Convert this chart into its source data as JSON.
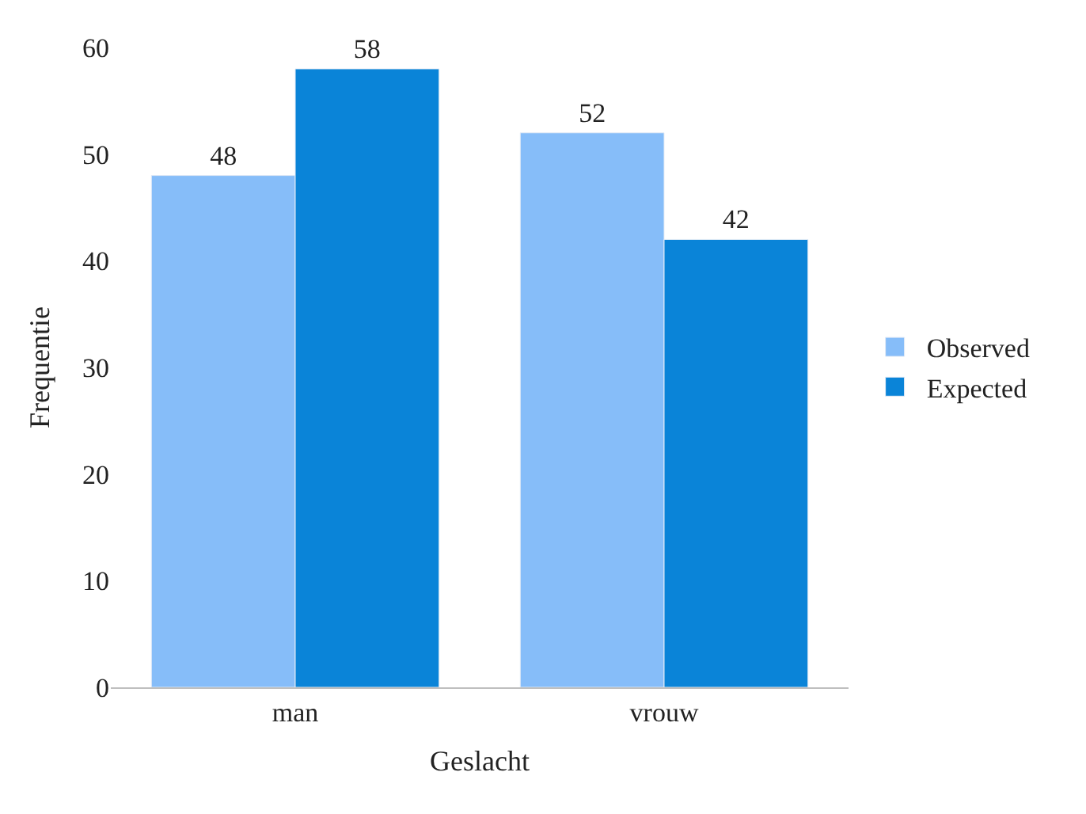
{
  "chart_data": {
    "type": "bar",
    "xlabel": "Geslacht",
    "ylabel": "Frequentie",
    "categories": [
      "man",
      "vrouw"
    ],
    "series": [
      {
        "name": "Observed",
        "color": "#86bdf9",
        "values": [
          48,
          52
        ]
      },
      {
        "name": "Expected",
        "color": "#0a84d8",
        "values": [
          58,
          42
        ]
      }
    ],
    "ylim": [
      0,
      60
    ],
    "yticks": [
      0,
      10,
      20,
      30,
      40,
      50,
      60
    ],
    "grid": false,
    "legend": "right",
    "data_labels": true
  }
}
